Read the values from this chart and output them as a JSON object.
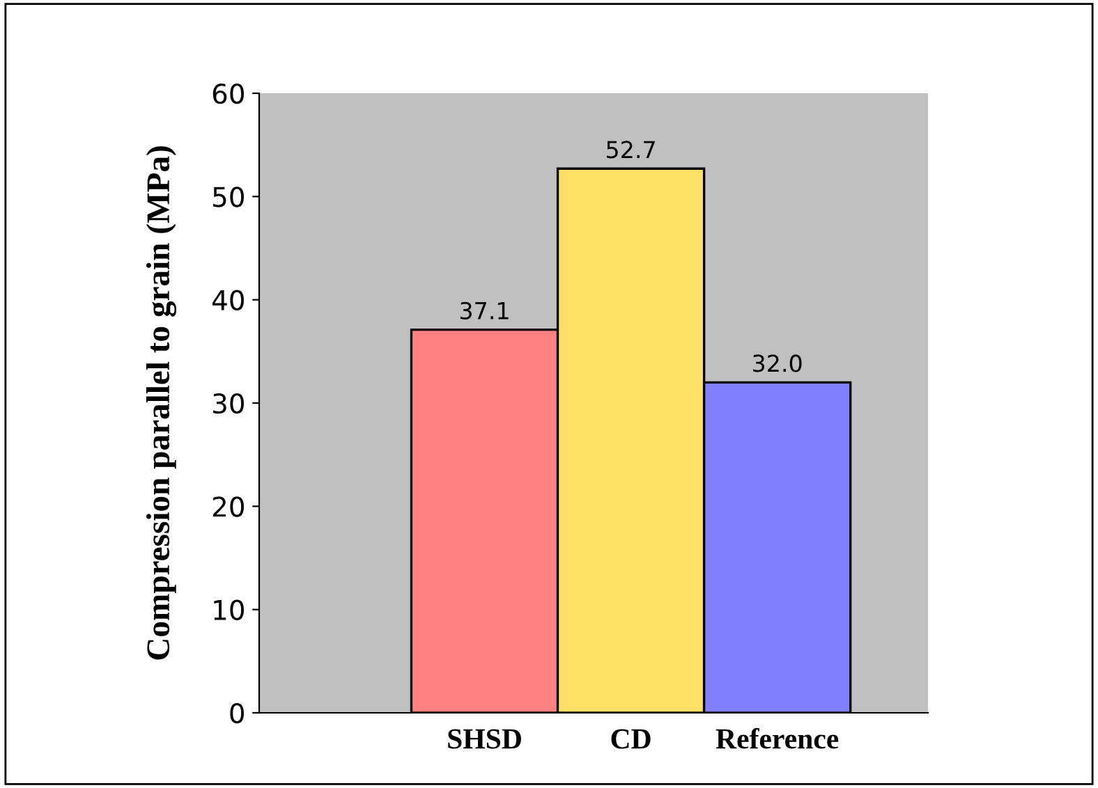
{
  "chart_data": {
    "type": "bar",
    "ylabel": "Compression parallel to grain (MPa)",
    "categories": [
      "SHSD",
      "CD",
      "Reference"
    ],
    "values": [
      37.1,
      52.7,
      32.0
    ],
    "colors": [
      "#ff8080",
      "#ffe066",
      "#8080ff"
    ],
    "value_labels": [
      "37.1",
      "52.7",
      "32.0"
    ],
    "ylim": [
      0,
      60
    ],
    "yticks": [
      0,
      10,
      20,
      30,
      40,
      50,
      60
    ],
    "grid": false,
    "legend": false
  }
}
